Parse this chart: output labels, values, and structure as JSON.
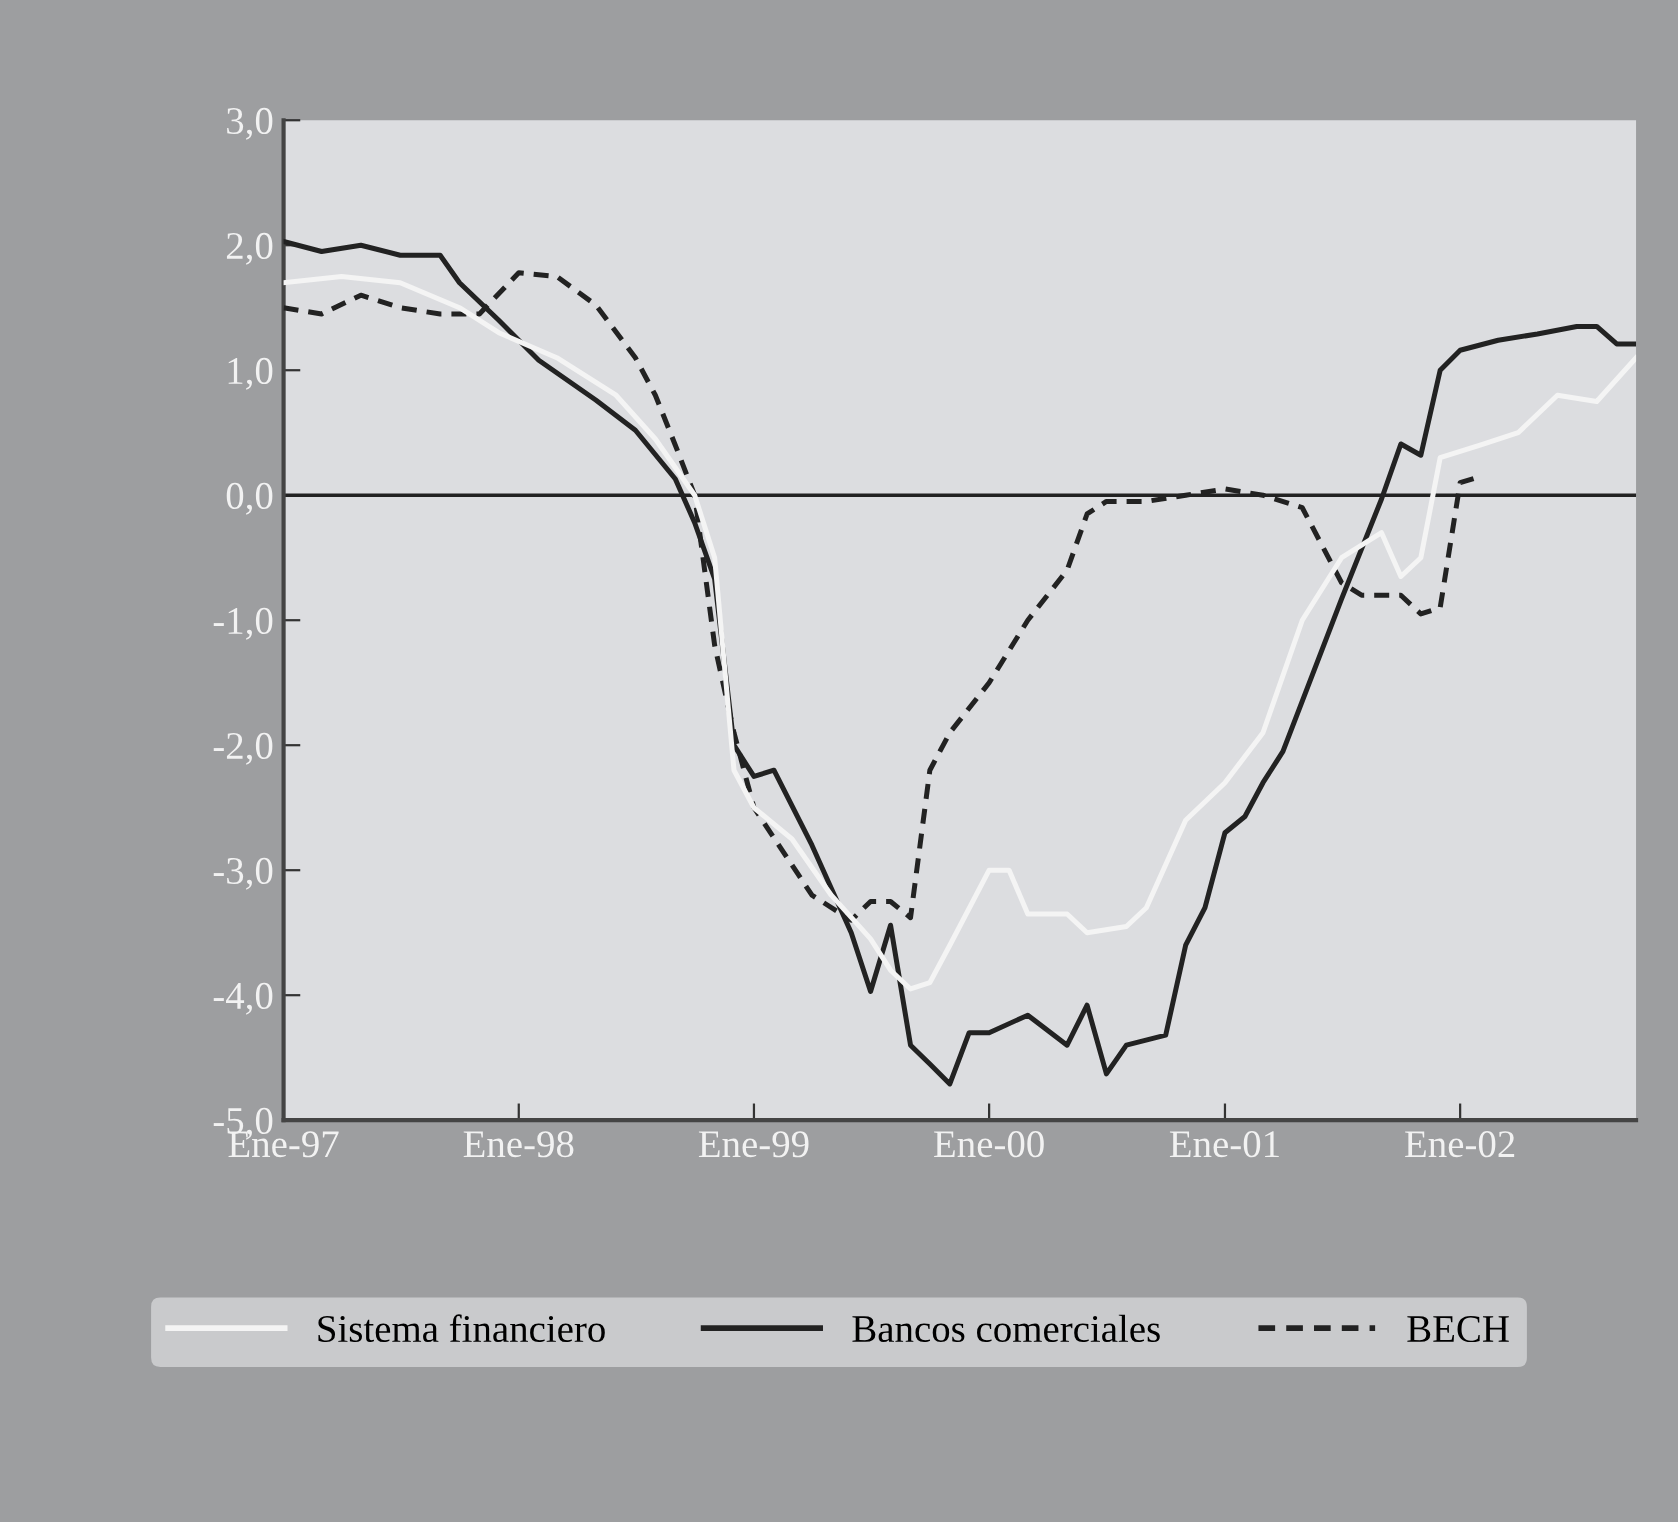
{
  "chart_data": {
    "type": "line",
    "xlim": [
      "1997-01",
      "2002-10"
    ],
    "ylim": [
      -5,
      3
    ],
    "xticks": [
      {
        "value": "1997-01",
        "label": "Ene-97"
      },
      {
        "value": "1998-01",
        "label": "Ene-98"
      },
      {
        "value": "1999-01",
        "label": "Ene-99"
      },
      {
        "value": "2000-01",
        "label": "Ene-00"
      },
      {
        "value": "2001-01",
        "label": "Ene-01"
      },
      {
        "value": "2002-01",
        "label": "Ene-02"
      }
    ],
    "yticks": [
      {
        "value": 3,
        "label": "3,0"
      },
      {
        "value": 2,
        "label": "2,0"
      },
      {
        "value": 1,
        "label": "1,0"
      },
      {
        "value": 0,
        "label": "0,0"
      },
      {
        "value": -1,
        "label": "-1,0"
      },
      {
        "value": -2,
        "label": "-2,0"
      },
      {
        "value": -3,
        "label": "-3,0"
      },
      {
        "value": -4,
        "label": "-4,0"
      },
      {
        "value": -5,
        "label": "-5,0"
      }
    ],
    "grid": false,
    "legend": "bottom",
    "ref_lines": [
      {
        "axis": "y",
        "value": 0,
        "color": "#222222",
        "line_style": "solid"
      }
    ],
    "series": [
      {
        "name": "Sistema financiero",
        "color": "#f4f4f4",
        "line_style": "solid",
        "x": [
          "1997-01",
          "1997-04",
          "1997-07",
          "1997-10",
          "1997-12",
          "1998-03",
          "1998-06",
          "1998-08",
          "1998-10",
          "1998-11",
          "1998-12",
          "1999-01",
          "1999-03",
          "1999-05",
          "1999-07",
          "1999-08",
          "1999-09",
          "1999-10",
          "1999-11",
          "2000-01",
          "2000-02",
          "2000-03",
          "2000-05",
          "2000-06",
          "2000-08",
          "2000-09",
          "2000-11",
          "2001-01",
          "2001-03",
          "2001-05",
          "2001-07",
          "2001-09",
          "2001-10",
          "2001-11",
          "2001-12",
          "2002-02",
          "2002-04",
          "2002-06",
          "2002-08",
          "2002-10"
        ],
        "values": [
          1.7,
          1.75,
          1.7,
          1.5,
          1.3,
          1.1,
          0.8,
          0.45,
          0.0,
          -0.5,
          -2.2,
          -2.5,
          -2.75,
          -3.2,
          -3.55,
          -3.8,
          -3.95,
          -3.9,
          -3.6,
          -3.0,
          -3.0,
          -3.35,
          -3.35,
          -3.5,
          -3.45,
          -3.3,
          -2.6,
          -2.3,
          -1.9,
          -1.0,
          -0.5,
          -0.3,
          -0.65,
          -0.5,
          0.3,
          0.4,
          0.5,
          0.8,
          0.75,
          1.1
        ]
      },
      {
        "name": "Bancos comerciales",
        "color": "#222222",
        "line_style": "solid",
        "x": [
          "1997-01",
          "1997-03",
          "1997-05",
          "1997-07",
          "1997-09",
          "1997-10",
          "1997-12",
          "1998-02",
          "1998-05",
          "1998-07",
          "1998-09",
          "1998-10",
          "1998-11",
          "1998-12",
          "1999-01",
          "1999-02",
          "1999-04",
          "1999-06",
          "1999-07",
          "1999-08",
          "1999-09",
          "1999-10",
          "1999-11",
          "1999-12",
          "2000-01",
          "2000-03",
          "2000-05",
          "2000-06",
          "2000-07",
          "2000-08",
          "2000-10",
          "2000-11",
          "2000-12",
          "2001-01",
          "2001-02",
          "2001-03",
          "2001-04",
          "2001-07",
          "2001-09",
          "2001-10",
          "2001-11",
          "2001-12",
          "2002-01",
          "2002-03",
          "2002-05",
          "2002-07",
          "2002-08",
          "2002-09",
          "2002-10"
        ],
        "values": [
          2.03,
          1.95,
          2.0,
          1.92,
          1.92,
          1.7,
          1.4,
          1.08,
          0.76,
          0.52,
          0.13,
          -0.22,
          -0.67,
          -2.0,
          -2.25,
          -2.2,
          -2.8,
          -3.5,
          -3.97,
          -3.44,
          -4.4,
          -4.55,
          -4.71,
          -4.3,
          -4.3,
          -4.16,
          -4.4,
          -4.08,
          -4.63,
          -4.4,
          -4.32,
          -3.6,
          -3.3,
          -2.7,
          -2.57,
          -2.3,
          -2.05,
          -0.83,
          -0.03,
          0.41,
          0.32,
          1.0,
          1.16,
          1.24,
          1.29,
          1.35,
          1.35,
          1.21,
          1.21
        ]
      },
      {
        "name": "BECH",
        "color": "#222222",
        "line_style": "dashed",
        "x": [
          "1997-01",
          "1997-03",
          "1997-05",
          "1997-07",
          "1997-09",
          "1997-11",
          "1998-01",
          "1998-03",
          "1998-05",
          "1998-07",
          "1998-08",
          "1998-09",
          "1998-10",
          "1998-11",
          "1998-12",
          "1999-01",
          "1999-04",
          "1999-06",
          "1999-07",
          "1999-08",
          "1999-09",
          "1999-10",
          "1999-11",
          "2000-01",
          "2000-03",
          "2000-05",
          "2000-06",
          "2000-07",
          "2000-09",
          "2000-11",
          "2001-01",
          "2001-03",
          "2001-05",
          "2001-07",
          "2001-08",
          "2001-10",
          "2001-11",
          "2001-12",
          "2002-01",
          "2002-02"
        ],
        "values": [
          1.5,
          1.45,
          1.6,
          1.5,
          1.45,
          1.45,
          1.78,
          1.75,
          1.52,
          1.1,
          0.8,
          0.4,
          0.0,
          -1.2,
          -1.9,
          -2.5,
          -3.2,
          -3.4,
          -3.25,
          -3.25,
          -3.38,
          -2.2,
          -1.9,
          -1.5,
          -1.0,
          -0.6,
          -0.15,
          -0.05,
          -0.05,
          0.0,
          0.05,
          0.0,
          -0.1,
          -0.7,
          -0.8,
          -0.8,
          -0.95,
          -0.9,
          0.1,
          0.15
        ]
      }
    ]
  }
}
